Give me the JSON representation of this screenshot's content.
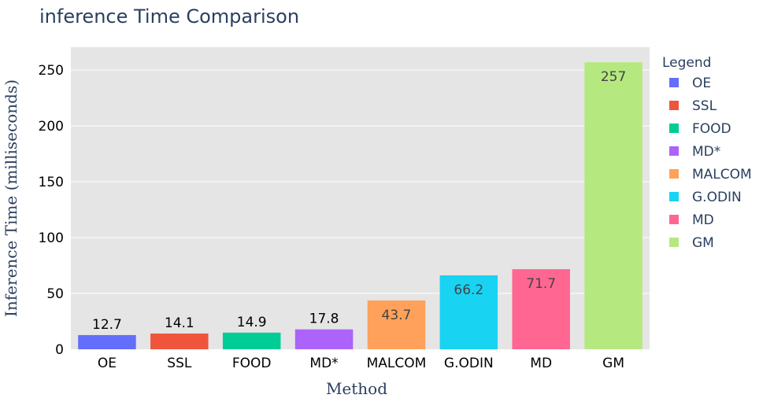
{
  "chart_data": {
    "type": "bar",
    "title": "inference Time Comparison",
    "xlabel": "Method",
    "ylabel": "Inference Time (milliseconds)",
    "categories": [
      "OE",
      "SSL",
      "FOOD",
      "MD*",
      "MALCOM",
      "G.ODIN",
      "MD",
      "GM"
    ],
    "values": [
      12.7,
      14.1,
      14.9,
      17.8,
      43.7,
      66.2,
      71.7,
      257
    ],
    "value_labels": [
      "12.7",
      "14.1",
      "14.9",
      "17.8",
      "43.7",
      "66.2",
      "71.7",
      "257"
    ],
    "colors": [
      "#636efa",
      "#ef553b",
      "#00cc96",
      "#ab63fa",
      "#ffa15a",
      "#19d3f3",
      "#ff6692",
      "#b6e880"
    ],
    "yticks": [
      0,
      50,
      100,
      150,
      200,
      250
    ],
    "ytick_labels": [
      "0",
      "50",
      "100",
      "150",
      "200",
      "250"
    ],
    "ylim": [
      0,
      270.5
    ],
    "grid": true,
    "legend_title": "Legend",
    "legend_position": "right",
    "background": "#e5e5e5"
  }
}
